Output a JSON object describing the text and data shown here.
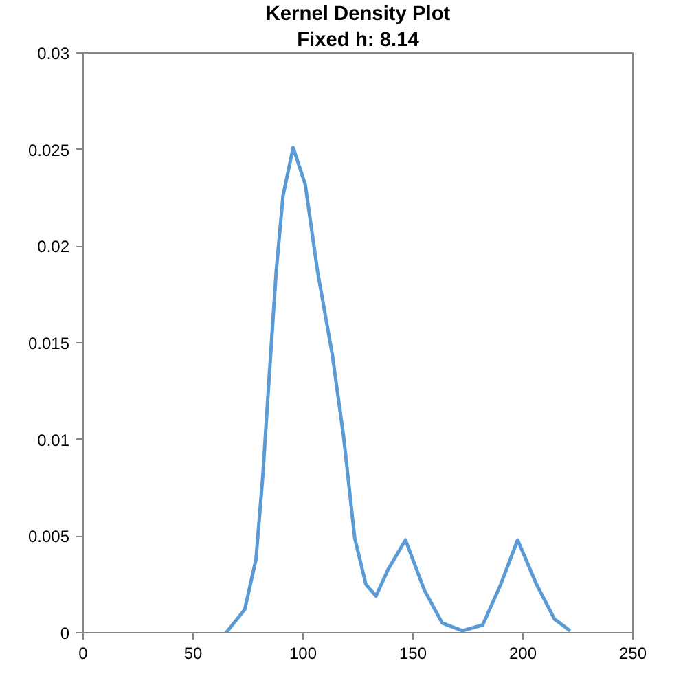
{
  "chart_data": {
    "type": "line",
    "title": "Kernel Density Plot",
    "subtitle": "Fixed h: 8.14",
    "x": [
      65,
      73.5,
      78.6,
      81.7,
      84.7,
      87.8,
      90.9,
      95.5,
      101,
      106.6,
      113.3,
      118.4,
      123.5,
      128.6,
      133.2,
      138.8,
      146.6,
      155.2,
      163.3,
      172.5,
      181.7,
      189.9,
      197.6,
      206.2,
      214.4,
      221.5
    ],
    "series": [
      {
        "color": "#5b9bd5",
        "values": [
          0,
          0.0012,
          0.0038,
          0.0081,
          0.0134,
          0.0187,
          0.0226,
          0.0251,
          0.0232,
          0.0187,
          0.0144,
          0.0102,
          0.0049,
          0.0025,
          0.0019,
          0.0033,
          0.0048,
          0.0022,
          0.0005,
          0.0001,
          0.0004,
          0.0025,
          0.0048,
          0.0025,
          0.0007,
          0.0001
        ]
      }
    ],
    "xlim": [
      0,
      250
    ],
    "xticks": [
      0,
      50,
      100,
      150,
      200,
      250
    ],
    "ylim": [
      0,
      0.03
    ],
    "yticks": [
      0,
      0.005,
      0.01,
      0.015,
      0.02,
      0.025,
      0.03
    ],
    "grid": false,
    "marker": "none",
    "line_style": "solid"
  }
}
